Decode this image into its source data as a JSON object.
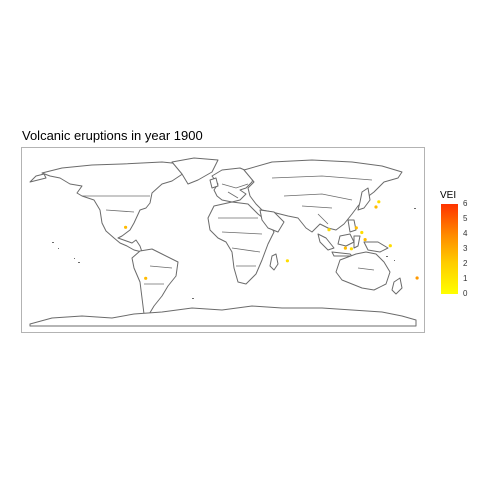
{
  "title": "Volcanic eruptions in year 1900",
  "legend": {
    "title": "VEI",
    "ticks": [
      "6",
      "5",
      "4",
      "3",
      "2",
      "1",
      "0"
    ],
    "colors": {
      "low": "#ffff00",
      "high": "#ff3300"
    }
  },
  "map": {
    "land_fill": "#ffffff",
    "border_color": "#6b6b6b",
    "frame_color": "#b3b3b3"
  },
  "eruptions": [
    {
      "lon": 138.0,
      "lat": 36.0,
      "vei": 2
    },
    {
      "lon": 140.5,
      "lat": 41.5,
      "vei": 1
    },
    {
      "lon": 125.0,
      "lat": 9.0,
      "vei": 1
    },
    {
      "lon": 120.0,
      "lat": 14.0,
      "vei": 2
    },
    {
      "lon": 110.0,
      "lat": -7.5,
      "vei": 2
    },
    {
      "lon": 115.5,
      "lat": -8.3,
      "vei": 1
    },
    {
      "lon": 128.0,
      "lat": 1.5,
      "vei": 2
    },
    {
      "lon": 151.0,
      "lat": -5.0,
      "vei": 1
    },
    {
      "lon": 175.5,
      "lat": -39.2,
      "vei": 3
    },
    {
      "lon": -90.8,
      "lat": 14.5,
      "vei": 2
    },
    {
      "lon": -72.5,
      "lat": -39.5,
      "vei": 2
    },
    {
      "lon": 57.0,
      "lat": -21.0,
      "vei": 1
    },
    {
      "lon": 95.0,
      "lat": 12.0,
      "vei": 1
    }
  ]
}
